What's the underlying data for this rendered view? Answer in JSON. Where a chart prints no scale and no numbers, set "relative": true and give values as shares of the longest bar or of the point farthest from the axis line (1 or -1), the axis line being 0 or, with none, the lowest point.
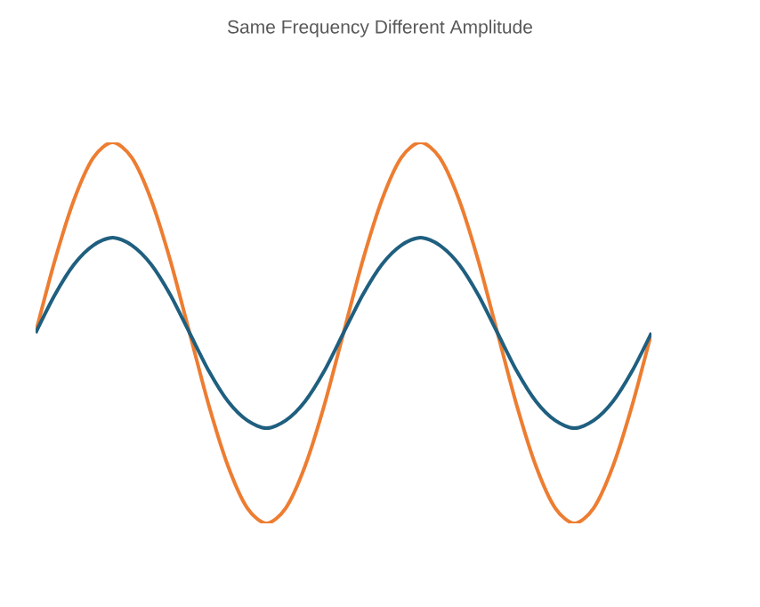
{
  "chart_data": {
    "type": "line",
    "title": "Same Frequency Different Amplitude",
    "relative": true,
    "categories": [
      null,
      null,
      null,
      null,
      null,
      null,
      null,
      null,
      null,
      null,
      null,
      null,
      null,
      null,
      null,
      null,
      null,
      null,
      null,
      null,
      null,
      null,
      null,
      null,
      null,
      null,
      null,
      null,
      null,
      null,
      null,
      null,
      null
    ],
    "series": [
      {
        "color": "#ed7d31",
        "values": [
          0.5,
          0.69,
          0.85,
          0.96,
          1,
          0.96,
          0.85,
          0.69,
          0.5,
          0.31,
          0.15,
          0.04,
          0,
          0.04,
          0.15,
          0.31,
          0.5,
          0.69,
          0.85,
          0.96,
          1,
          0.96,
          0.85,
          0.69,
          0.5,
          0.31,
          0.15,
          0.04,
          0,
          0.04,
          0.15,
          0.31,
          0.5
        ]
      },
      {
        "color": "#1f5f7f",
        "values": [
          0.5,
          0.6,
          0.68,
          0.73,
          0.75,
          0.73,
          0.68,
          0.6,
          0.5,
          0.4,
          0.32,
          0.27,
          0.25,
          0.27,
          0.32,
          0.4,
          0.5,
          0.6,
          0.68,
          0.73,
          0.75,
          0.73,
          0.68,
          0.6,
          0.5,
          0.4,
          0.32,
          0.27,
          0.25,
          0.27,
          0.32,
          0.4,
          0.5
        ]
      }
    ]
  }
}
